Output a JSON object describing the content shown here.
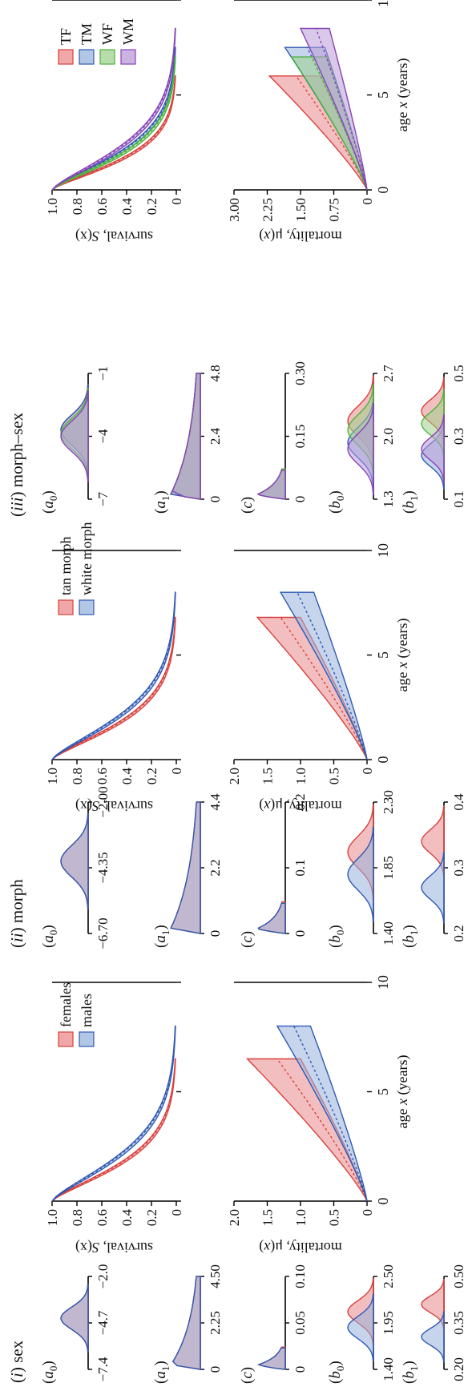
{
  "colors": {
    "red": "#d9413d",
    "red_fill": "#e9898a",
    "blue": "#2f59b3",
    "blue_fill": "#98b3dc",
    "green": "#4db53d",
    "green_fill": "#9dd28e",
    "purple": "#8743b6",
    "purple_fill": "#b99ad8",
    "overlap": "#8b6aa8"
  },
  "panels": {
    "sex": {
      "title_roman": "i",
      "title_rest": " sex",
      "legend": [
        "females",
        "males"
      ],
      "dists": [
        {
          "sym": "a",
          "sub": "0",
          "ticks": [
            "−7.4",
            "−4.7",
            "−2.0"
          ]
        },
        {
          "sym": "a",
          "sub": "1",
          "ticks": [
            "0",
            "2.25",
            "4.50"
          ]
        },
        {
          "sym": "c",
          "sub": "",
          "ticks": [
            "0",
            "0.05",
            "0.10"
          ]
        },
        {
          "sym": "b",
          "sub": "0",
          "ticks": [
            "1.40",
            "1.95",
            "2.50"
          ]
        },
        {
          "sym": "b",
          "sub": "1",
          "ticks": [
            "0.20",
            "0.35",
            "0.50"
          ]
        }
      ],
      "surv_ticks": [
        "1.0",
        "0.8",
        "0.6",
        "0.4",
        "0.2",
        "0"
      ],
      "mort_ticks": [
        "2.0",
        "1.5",
        "1.0",
        "0.5",
        "0"
      ],
      "x_ticks": [
        "0",
        "5",
        "10"
      ]
    },
    "morph": {
      "title_roman": "ii",
      "title_rest": " morph",
      "legend": [
        "tan morph",
        "white morph"
      ],
      "dists": [
        {
          "sym": "a",
          "sub": "0",
          "ticks": [
            "−6.70",
            "−4.35",
            "−2.00"
          ]
        },
        {
          "sym": "a",
          "sub": "1",
          "ticks": [
            "0",
            "2.2",
            "4.4"
          ]
        },
        {
          "sym": "c",
          "sub": "",
          "ticks": [
            "0",
            "0.1",
            "0.2"
          ]
        },
        {
          "sym": "b",
          "sub": "0",
          "ticks": [
            "1.40",
            "1.85",
            "2.30"
          ]
        },
        {
          "sym": "b",
          "sub": "1",
          "ticks": [
            "0.2",
            "0.3",
            "0.4"
          ]
        }
      ],
      "surv_ticks": [
        "1.0",
        "0.8",
        "0.6",
        "0.4",
        "0.2",
        "0"
      ],
      "mort_ticks": [
        "2.0",
        "1.5",
        "1.0",
        "0.5",
        "0"
      ],
      "x_ticks": [
        "0",
        "5",
        "10"
      ]
    },
    "morphsex": {
      "title_roman": "iii",
      "title_rest": " morph–sex",
      "legend": [
        "TF",
        "TM",
        "WF",
        "WM"
      ],
      "dists": [
        {
          "sym": "a",
          "sub": "0",
          "ticks": [
            "−7",
            "−4",
            "−1"
          ]
        },
        {
          "sym": "a",
          "sub": "1",
          "ticks": [
            "0",
            "2.4",
            "4.8"
          ]
        },
        {
          "sym": "c",
          "sub": "",
          "ticks": [
            "0",
            "0.15",
            "0.30"
          ]
        },
        {
          "sym": "b",
          "sub": "0",
          "ticks": [
            "1.3",
            "2.0",
            "2.7"
          ]
        },
        {
          "sym": "b",
          "sub": "1",
          "ticks": [
            "0.1",
            "0.3",
            "0.5"
          ]
        }
      ],
      "surv_ticks": [
        "1.0",
        "0.8",
        "0.6",
        "0.4",
        "0.2",
        "0"
      ],
      "mort_ticks": [
        "3.00",
        "2.25",
        "1.50",
        "0.75",
        "0"
      ],
      "x_ticks": [
        "0",
        "5",
        "10"
      ]
    }
  },
  "labels": {
    "surv_prefix": "survival, ",
    "surv_S": "S",
    "surv_suffix": "(x)",
    "mort_prefix": "mortality, μ(",
    "mort_x": "x",
    "mort_suffix": ")",
    "age_prefix": "age ",
    "age_x": "x",
    "age_suffix": " (years)"
  },
  "chart_data": [
    {
      "panel": "(i) sex",
      "type": "area",
      "subplot": "survival",
      "ylabel": "survival, S(x)",
      "xlabel": "age x (years)",
      "xlim": [
        0,
        10
      ],
      "ylim": [
        0,
        1
      ],
      "series": [
        {
          "name": "females",
          "x_end": 6.5,
          "median_at": {
            "x": [
              0,
              1,
              2,
              3,
              4,
              5,
              6
            ],
            "y": [
              1.0,
              0.78,
              0.52,
              0.3,
              0.15,
              0.07,
              0.02
            ]
          }
        },
        {
          "name": "males",
          "x_end": 8.0,
          "median_at": {
            "x": [
              0,
              1,
              2,
              3,
              4,
              5,
              6,
              7,
              8
            ],
            "y": [
              1.0,
              0.82,
              0.6,
              0.4,
              0.24,
              0.13,
              0.06,
              0.02,
              0.01
            ]
          }
        }
      ]
    },
    {
      "panel": "(i) sex",
      "type": "area",
      "subplot": "mortality",
      "ylabel": "mortality, μ(x)",
      "xlabel": "age x (years)",
      "xlim": [
        0,
        10
      ],
      "ylim": [
        0,
        2
      ],
      "series": [
        {
          "name": "females",
          "x_end": 6.5,
          "median_end": 1.35,
          "band_end": [
            1.0,
            1.8
          ]
        },
        {
          "name": "males",
          "x_end": 8.0,
          "median_end": 1.1,
          "band_end": [
            0.85,
            1.35
          ]
        }
      ]
    },
    {
      "panel": "(ii) morph",
      "type": "area",
      "subplot": "survival",
      "ylabel": "survival, S(x)",
      "xlabel": "age x (years)",
      "xlim": [
        0,
        10
      ],
      "ylim": [
        0,
        1
      ],
      "series": [
        {
          "name": "tan morph",
          "x_end": 6.8,
          "median_at": {
            "x": [
              0,
              1,
              2,
              3,
              4,
              5,
              6
            ],
            "y": [
              1.0,
              0.8,
              0.56,
              0.35,
              0.19,
              0.09,
              0.03
            ]
          }
        },
        {
          "name": "white morph",
          "x_end": 8.0,
          "median_at": {
            "x": [
              0,
              1,
              2,
              3,
              4,
              5,
              6,
              7,
              8
            ],
            "y": [
              1.0,
              0.81,
              0.58,
              0.38,
              0.22,
              0.12,
              0.05,
              0.02,
              0.01
            ]
          }
        }
      ]
    },
    {
      "panel": "(ii) morph",
      "type": "area",
      "subplot": "mortality",
      "ylabel": "mortality, μ(x)",
      "xlabel": "age x (years)",
      "xlim": [
        0,
        10
      ],
      "ylim": [
        0,
        2
      ],
      "series": [
        {
          "name": "tan morph",
          "x_end": 6.8,
          "median_end": 1.3,
          "band_end": [
            1.0,
            1.65
          ]
        },
        {
          "name": "white morph",
          "x_end": 8.0,
          "median_end": 1.05,
          "band_end": [
            0.8,
            1.3
          ]
        }
      ]
    },
    {
      "panel": "(iii) morph–sex",
      "type": "area",
      "subplot": "survival",
      "ylabel": "survival, S(x)",
      "xlabel": "age x (years)",
      "xlim": [
        0,
        10
      ],
      "ylim": [
        0,
        1
      ],
      "series": [
        {
          "name": "TF",
          "x_end": 6.0,
          "median_end": 0.02
        },
        {
          "name": "TM",
          "x_end": 7.5,
          "median_end": 0.02
        },
        {
          "name": "WF",
          "x_end": 7.0,
          "median_end": 0.02
        },
        {
          "name": "WM",
          "x_end": 8.5,
          "median_end": 0.02
        }
      ]
    },
    {
      "panel": "(iii) morph–sex",
      "type": "area",
      "subplot": "mortality",
      "ylabel": "mortality, μ(x)",
      "xlabel": "age x (years)",
      "xlim": [
        0,
        10
      ],
      "ylim": [
        0,
        3
      ],
      "series": [
        {
          "name": "TF",
          "x_end": 6.0,
          "median_end": 1.6,
          "band_end": [
            1.05,
            2.2
          ]
        },
        {
          "name": "TM",
          "x_end": 7.5,
          "median_end": 1.35,
          "band_end": [
            0.95,
            1.85
          ]
        },
        {
          "name": "WF",
          "x_end": 7.0,
          "median_end": 1.25,
          "band_end": [
            0.9,
            1.7
          ]
        },
        {
          "name": "WM",
          "x_end": 8.5,
          "median_end": 1.15,
          "band_end": [
            0.85,
            1.5
          ]
        }
      ]
    }
  ]
}
